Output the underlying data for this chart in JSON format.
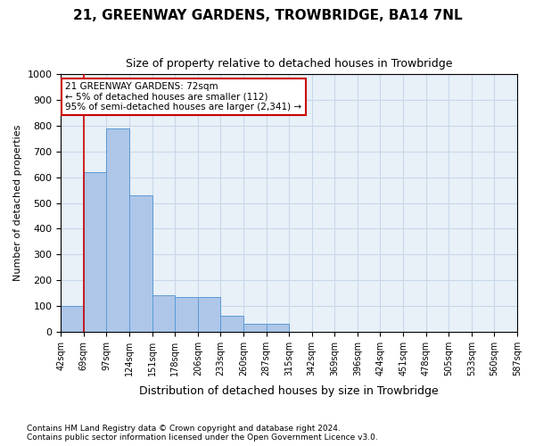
{
  "title_line1": "21, GREENWAY GARDENS, TROWBRIDGE, BA14 7NL",
  "title_line2": "Size of property relative to detached houses in Trowbridge",
  "xlabel": "Distribution of detached houses by size in Trowbridge",
  "ylabel": "Number of detached properties",
  "bar_values": [
    100,
    620,
    790,
    530,
    140,
    135,
    135,
    60,
    30,
    30,
    0,
    0,
    0,
    0,
    0,
    0,
    0,
    0,
    0,
    0
  ],
  "bin_labels": [
    "42sqm",
    "69sqm",
    "97sqm",
    "124sqm",
    "151sqm",
    "178sqm",
    "206sqm",
    "233sqm",
    "260sqm",
    "287sqm",
    "315sqm",
    "342sqm",
    "369sqm",
    "396sqm",
    "424sqm",
    "451sqm",
    "478sqm",
    "505sqm",
    "533sqm",
    "560sqm",
    "587sqm"
  ],
  "bar_color": "#aec6e8",
  "bar_edge_color": "#5b9bd5",
  "grid_color": "#c8d8e8",
  "background_color": "#e8f0f8",
  "vline_x": 1,
  "vline_color": "#cc0000",
  "annotation_text": "21 GREENWAY GARDENS: 72sqm\n← 5% of detached houses are smaller (112)\n95% of semi-detached houses are larger (2,341) →",
  "annotation_box_color": "#ffffff",
  "annotation_box_edge": "#cc0000",
  "ylim": [
    0,
    1000
  ],
  "yticks": [
    0,
    100,
    200,
    300,
    400,
    500,
    600,
    700,
    800,
    900,
    1000
  ],
  "footer_line1": "Contains HM Land Registry data © Crown copyright and database right 2024.",
  "footer_line2": "Contains public sector information licensed under the Open Government Licence v3.0."
}
